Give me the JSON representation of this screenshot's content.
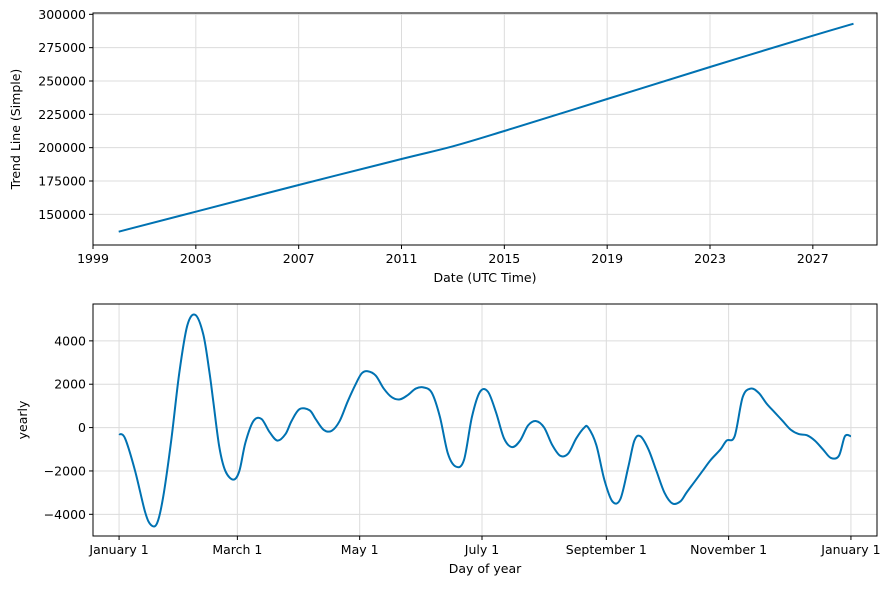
{
  "chart_data": [
    {
      "type": "line",
      "title": "",
      "xlabel": "Date (UTC Time)",
      "ylabel": "Trend Line (Simple)",
      "x_scale": "date",
      "xlim": [
        "1999-01-01",
        "2029-07-01"
      ],
      "ylim": [
        127000,
        301000
      ],
      "grid": true,
      "legend": "none",
      "color": "#0072B2",
      "xticks": [
        {
          "value": "1999-01-01",
          "label": "1999"
        },
        {
          "value": "2003-01-01",
          "label": "2003"
        },
        {
          "value": "2007-01-01",
          "label": "2007"
        },
        {
          "value": "2011-01-01",
          "label": "2011"
        },
        {
          "value": "2015-01-01",
          "label": "2015"
        },
        {
          "value": "2019-01-01",
          "label": "2019"
        },
        {
          "value": "2023-01-01",
          "label": "2023"
        },
        {
          "value": "2027-01-01",
          "label": "2027"
        }
      ],
      "yticks": [
        {
          "value": 150000,
          "label": "150000"
        },
        {
          "value": 175000,
          "label": "175000"
        },
        {
          "value": 200000,
          "label": "200000"
        },
        {
          "value": 225000,
          "label": "225000"
        },
        {
          "value": 250000,
          "label": "250000"
        },
        {
          "value": 275000,
          "label": "275000"
        },
        {
          "value": 300000,
          "label": "300000"
        }
      ],
      "series": [
        {
          "x": [
            "2000-01-01",
            "2003-01-01",
            "2007-01-01",
            "2011-01-01",
            "2013-01-01",
            "2015-01-01",
            "2019-01-01",
            "2023-01-01",
            "2027-01-01",
            "2028-08-01"
          ],
          "values": [
            137000,
            152000,
            172000,
            191500,
            201000,
            212500,
            236500,
            260500,
            284000,
            293000
          ]
        }
      ]
    },
    {
      "type": "line",
      "title": "",
      "xlabel": "Day of year",
      "ylabel": "yearly",
      "xlim": [
        -13,
        378
      ],
      "ylim": [
        -5000,
        5700
      ],
      "grid": true,
      "legend": "none",
      "color": "#0072B2",
      "xticks": [
        {
          "value": 0,
          "label": "January 1"
        },
        {
          "value": 59,
          "label": "March 1"
        },
        {
          "value": 120,
          "label": "May 1"
        },
        {
          "value": 181,
          "label": "July 1"
        },
        {
          "value": 243,
          "label": "September 1"
        },
        {
          "value": 304,
          "label": "November 1"
        },
        {
          "value": 365,
          "label": "January 1"
        }
      ],
      "yticks": [
        {
          "value": -4000,
          "label": "−4000"
        },
        {
          "value": -2000,
          "label": "−2000"
        },
        {
          "value": 0,
          "label": "0"
        },
        {
          "value": 2000,
          "label": "2000"
        },
        {
          "value": 4000,
          "label": "4000"
        }
      ],
      "series": [
        {
          "x": [
            0,
            3,
            8,
            13,
            16,
            19,
            22,
            26,
            30,
            34,
            38,
            42,
            45,
            47,
            50,
            53,
            57,
            60,
            63,
            67,
            71,
            75,
            79,
            83,
            86,
            90,
            95,
            98,
            102,
            106,
            110,
            114,
            118,
            121,
            124,
            128,
            132,
            136,
            140,
            144,
            148,
            152,
            156,
            160,
            164,
            168,
            172,
            176,
            180,
            184,
            188,
            192,
            196,
            200,
            204,
            208,
            212,
            216,
            220,
            224,
            228,
            232,
            234,
            238,
            242,
            246,
            250,
            254,
            257,
            260,
            264,
            268,
            272,
            276,
            280,
            283,
            287,
            291,
            295,
            300,
            303,
            307,
            311,
            315,
            319,
            323,
            327,
            331,
            335,
            339,
            343,
            347,
            351,
            355,
            359,
            362,
            365
          ],
          "values": [
            -300,
            -500,
            -2000,
            -3900,
            -4500,
            -4400,
            -3200,
            -600,
            2500,
            4700,
            5200,
            4300,
            2600,
            1200,
            -900,
            -2000,
            -2400,
            -2000,
            -700,
            300,
            400,
            -200,
            -600,
            -300,
            300,
            850,
            800,
            400,
            -100,
            -150,
            300,
            1200,
            2000,
            2500,
            2600,
            2400,
            1800,
            1400,
            1300,
            1500,
            1800,
            1850,
            1600,
            500,
            -1200,
            -1800,
            -1500,
            500,
            1650,
            1650,
            700,
            -500,
            -900,
            -600,
            100,
            300,
            0,
            -800,
            -1300,
            -1200,
            -500,
            0,
            0,
            -800,
            -2400,
            -3400,
            -3300,
            -1800,
            -600,
            -400,
            -1000,
            -2000,
            -3000,
            -3500,
            -3400,
            -3000,
            -2500,
            -2000,
            -1500,
            -1000,
            -600,
            -400,
            1400,
            1800,
            1600,
            1100,
            700,
            300,
            -100,
            -300,
            -350,
            -600,
            -1000,
            -1400,
            -1300,
            -400,
            -400
          ]
        }
      ]
    }
  ]
}
